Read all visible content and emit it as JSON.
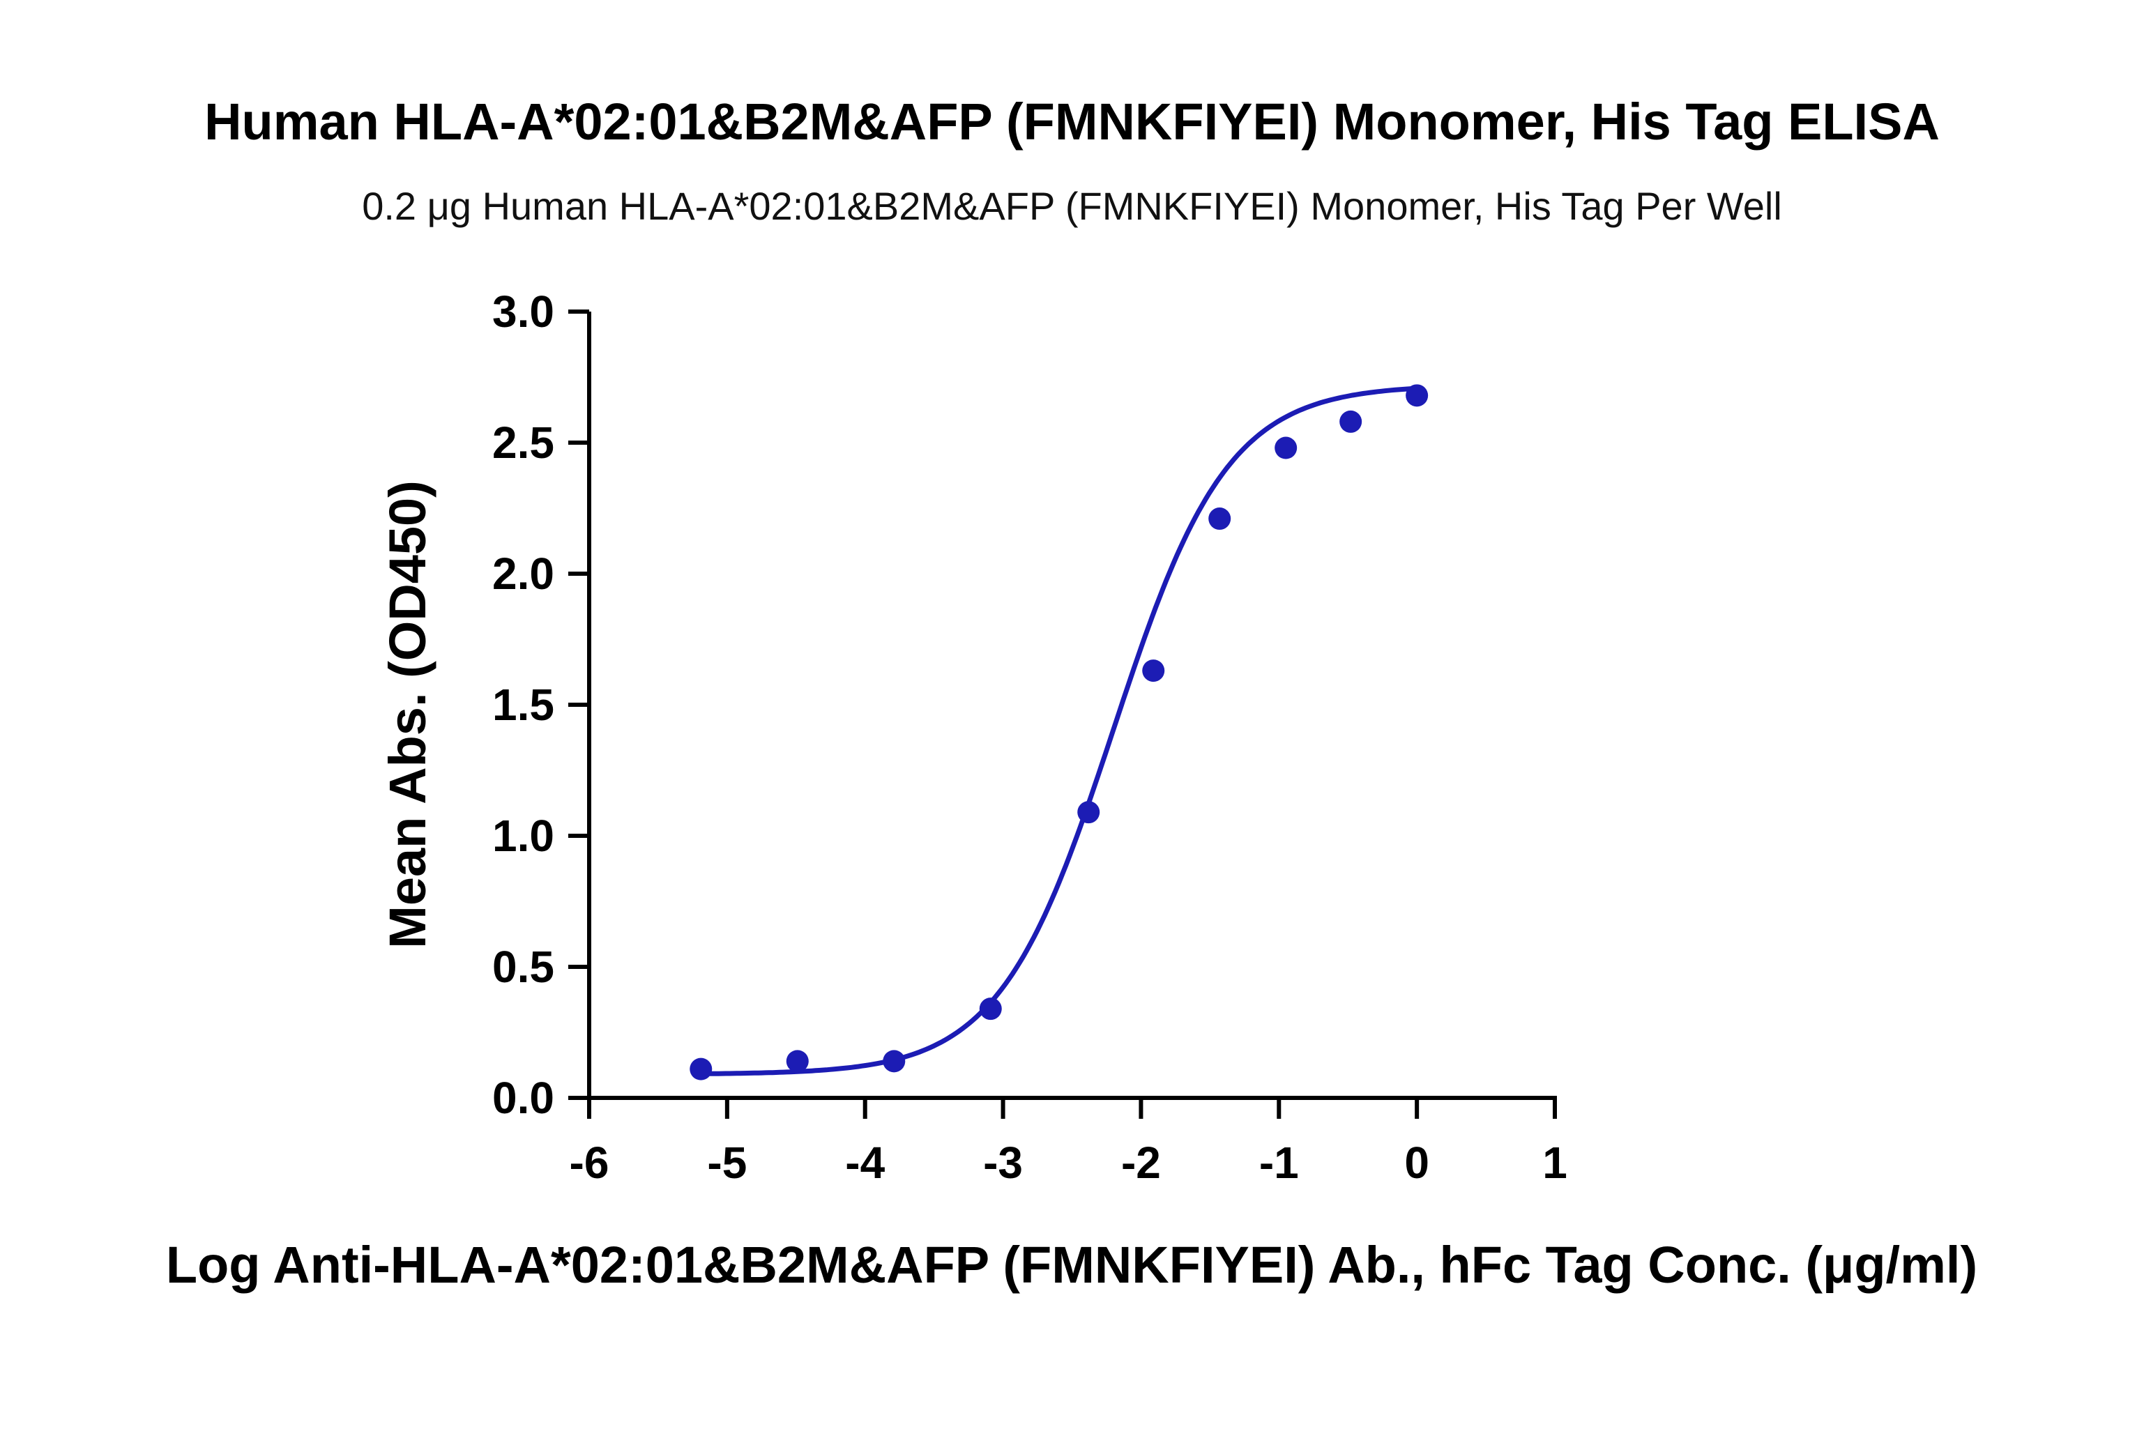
{
  "chart_data": {
    "type": "scatter",
    "title": "Human HLA-A*02:01&B2M&AFP (FMNKFIYEI) Monomer, His Tag ELISA",
    "subtitle": "0.2 μg Human HLA-A*02:01&B2M&AFP (FMNKFIYEI) Monomer, His Tag Per Well",
    "xlabel": "Log Anti-HLA-A*02:01&B2M&AFP (FMNKFIYEI) Ab., hFc Tag Conc. (μg/ml)",
    "ylabel": "Mean Abs. (OD450)",
    "xlim": [
      -6,
      1
    ],
    "ylim": [
      0,
      3.0
    ],
    "x_ticks": [
      "-6",
      "-5",
      "-4",
      "-3",
      "-2",
      "-1",
      "0",
      "1"
    ],
    "y_ticks": [
      "0.0",
      "0.5",
      "1.0",
      "1.5",
      "2.0",
      "2.5",
      "3.0"
    ],
    "grid": false,
    "color": "#1c1cb4",
    "series": [
      {
        "x": [
          -5.19,
          -4.49,
          -3.79,
          -3.09,
          -2.38,
          -1.91,
          -1.43,
          -0.95,
          -0.48,
          0.0
        ],
        "y": [
          0.11,
          0.14,
          0.14,
          0.34,
          1.09,
          1.63,
          2.21,
          2.48,
          2.58,
          2.68
        ]
      }
    ],
    "fit": {
      "model": "4PL",
      "bottom": 0.09,
      "top": 2.72,
      "logEC50": -2.2,
      "hill": 1.05
    }
  }
}
